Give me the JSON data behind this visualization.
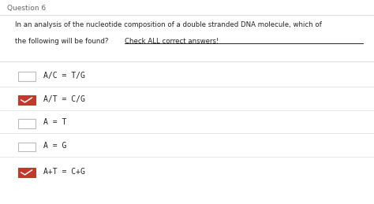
{
  "title": "Question 6",
  "question_line1": "In an analysis of the nucleotide composition of a double stranded DNA molecule, which of",
  "question_line2": "the following will be found?",
  "question_underlined": "Check ALL correct answers!",
  "bg_color": "#f0f0f0",
  "card_color": "#ffffff",
  "options": [
    {
      "text": "A/C = T/G",
      "checked": false
    },
    {
      "text": "A/T = C/G",
      "checked": true
    },
    {
      "text": "A = T",
      "checked": false
    },
    {
      "text": "A = G",
      "checked": false
    },
    {
      "text": "A+T = C+G",
      "checked": true
    }
  ],
  "checkbox_color_checked": "#c0392b",
  "checkbox_color_unchecked": "#bbbbbb",
  "divider_color": "#dddddd",
  "title_color": "#666666",
  "text_color": "#222222"
}
